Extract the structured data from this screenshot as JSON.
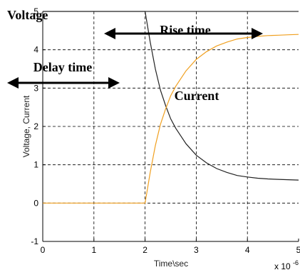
{
  "chart_data": {
    "type": "line",
    "title": "",
    "xlabel": "Time\\sec",
    "ylabel": "Voltage, Current",
    "x_multiplier_label": "x 10",
    "x_multiplier_exp": "-6",
    "xlim": [
      0,
      5
    ],
    "ylim": [
      -1,
      5
    ],
    "x_ticks": [
      0,
      1,
      2,
      3,
      4,
      5
    ],
    "y_ticks": [
      -1,
      0,
      1,
      2,
      3,
      4,
      5
    ],
    "grid": true,
    "series": [
      {
        "name": "Voltage",
        "color": "#222222",
        "x": [
          0,
          1,
          2,
          2.1,
          2.2,
          2.3,
          2.4,
          2.5,
          2.6,
          2.8,
          3.0,
          3.2,
          3.4,
          3.6,
          3.8,
          4.0,
          4.2,
          4.4,
          4.6,
          4.8,
          5.0
        ],
        "y": [
          5,
          5,
          5,
          4.2,
          3.5,
          2.95,
          2.55,
          2.2,
          1.95,
          1.55,
          1.25,
          1.05,
          0.9,
          0.8,
          0.72,
          0.68,
          0.65,
          0.63,
          0.62,
          0.61,
          0.6
        ]
      },
      {
        "name": "Current",
        "color": "#f0a020",
        "x": [
          0,
          1,
          2,
          2.1,
          2.2,
          2.3,
          2.4,
          2.5,
          2.6,
          2.8,
          3.0,
          3.2,
          3.4,
          3.6,
          3.8,
          4.0,
          4.2,
          4.4,
          4.6,
          4.8,
          5.0
        ],
        "y": [
          0,
          0,
          0,
          0.8,
          1.5,
          2.05,
          2.45,
          2.8,
          3.05,
          3.45,
          3.75,
          3.95,
          4.1,
          4.2,
          4.28,
          4.32,
          4.35,
          4.37,
          4.38,
          4.39,
          4.4
        ]
      }
    ],
    "annotations": [
      {
        "text": "Voltage"
      },
      {
        "text": "Rise time"
      },
      {
        "text": "Delay time"
      },
      {
        "text": "Current"
      }
    ]
  }
}
